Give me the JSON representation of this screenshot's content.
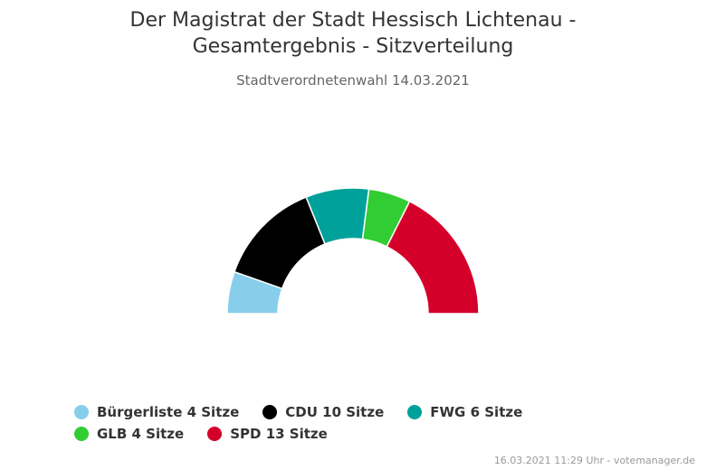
{
  "header": {
    "title_line1": "Der Magistrat der Stadt Hessisch Lichtenau -",
    "title_line2": "Gesamtergebnis - Sitzverteilung",
    "subtitle": "Stadtverordnetenwahl 14.03.2021"
  },
  "chart_data": {
    "type": "pie",
    "variant": "parliament-semicircle",
    "title": "Der Magistrat der Stadt Hessisch Lichtenau - Gesamtergebnis - Sitzverteilung",
    "subtitle": "Stadtverordnetenwahl 14.03.2021",
    "legend_position": "bottom",
    "series": [
      {
        "name": "Bürgerliste",
        "seats": 4,
        "color": "#87CEEB",
        "label": "Bürgerliste 4 Sitze"
      },
      {
        "name": "CDU",
        "seats": 10,
        "color": "#000000",
        "label": "CDU 10 Sitze"
      },
      {
        "name": "FWG",
        "seats": 6,
        "color": "#00A19A",
        "label": "FWG 6 Sitze"
      },
      {
        "name": "GLB",
        "seats": 4,
        "color": "#32CD32",
        "label": "GLB 4 Sitze"
      },
      {
        "name": "SPD",
        "seats": 13,
        "color": "#D4002A",
        "label": "SPD 13 Sitze"
      }
    ]
  },
  "footer": {
    "credit": "16.03.2021 11:29 Uhr - votemanager.de"
  }
}
